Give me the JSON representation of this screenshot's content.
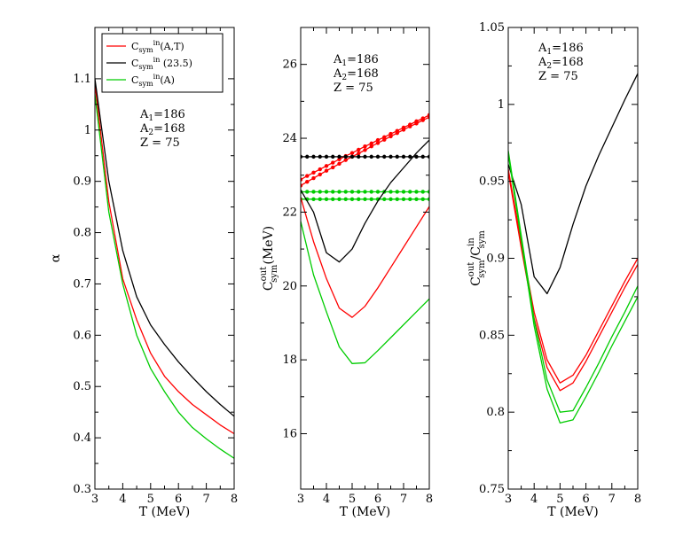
{
  "chart_data": [
    {
      "type": "line",
      "panel": "left",
      "title": "",
      "xlabel": "T (MeV)",
      "ylabel": "α",
      "xlim": [
        3,
        8
      ],
      "ylim": [
        0.3,
        1.2
      ],
      "xticks": [
        3,
        4,
        5,
        6,
        7,
        8
      ],
      "yticks": [
        0.3,
        0.4,
        0.5,
        0.6,
        0.7,
        0.8,
        0.9,
        1.0,
        1.1
      ],
      "ytick_labels": [
        "0.3",
        "0.4",
        "0.5",
        "0.6",
        "0.7",
        "0.8",
        "0.9",
        "1",
        "1.1"
      ],
      "legend": {
        "placement": "top-left",
        "entries": [
          {
            "base": "C",
            "sub": "sym",
            "sup": "in",
            "tail": "(A,T)",
            "color": "#ff0000"
          },
          {
            "base": "C",
            "sub": "sym",
            "sup": "in",
            "tail": " (23.5)",
            "color": "#000000"
          },
          {
            "base": "C",
            "sub": "sym",
            "sup": "in",
            "tail": "(A)",
            "color": "#00cc00"
          }
        ]
      },
      "annotation": [
        {
          "base": "A",
          "sub": "1",
          "value": "=186"
        },
        {
          "base": "A",
          "sub": "2",
          "value": "=168"
        },
        {
          "base": "Z",
          "sub": "",
          "value": " = 75"
        }
      ],
      "series": [
        {
          "name": "C_sym^in(A,T)",
          "color": "#ff0000",
          "markers": false,
          "x": [
            3,
            3.5,
            4,
            4.5,
            5,
            5.5,
            6,
            6.5,
            7,
            7.5,
            8
          ],
          "y": [
            1.09,
            0.86,
            0.71,
            0.63,
            0.565,
            0.52,
            0.49,
            0.465,
            0.445,
            0.425,
            0.408
          ]
        },
        {
          "name": "C_sym^in(23.5)",
          "color": "#000000",
          "markers": false,
          "x": [
            3,
            3.5,
            4,
            4.5,
            5,
            5.5,
            6,
            6.5,
            7,
            7.5,
            8
          ],
          "y": [
            1.1,
            0.9,
            0.765,
            0.675,
            0.62,
            0.582,
            0.548,
            0.518,
            0.49,
            0.465,
            0.442
          ]
        },
        {
          "name": "C_sym^in(A)",
          "color": "#00cc00",
          "markers": false,
          "x": [
            3,
            3.5,
            4,
            4.5,
            5,
            5.5,
            6,
            6.5,
            7,
            7.5,
            8
          ],
          "y": [
            1.07,
            0.84,
            0.7,
            0.6,
            0.535,
            0.49,
            0.45,
            0.42,
            0.398,
            0.378,
            0.36
          ]
        }
      ]
    },
    {
      "type": "line",
      "panel": "middle",
      "title": "",
      "xlabel": "T (MeV)",
      "ylabel": "C_sym^out (MeV)",
      "ylabel_parts": {
        "base": "C",
        "sub": "sym",
        "sup": "out",
        "tail": "(MeV)"
      },
      "xlim": [
        3,
        8
      ],
      "ylim": [
        14.5,
        27
      ],
      "xticks": [
        3,
        4,
        5,
        6,
        7,
        8
      ],
      "yticks": [
        16,
        18,
        20,
        22,
        24,
        26
      ],
      "ytick_labels": [
        "16",
        "18",
        "20",
        "22",
        "24",
        "26"
      ],
      "annotation": [
        {
          "base": "A",
          "sub": "1",
          "value": "=186"
        },
        {
          "base": "A",
          "sub": "2",
          "value": "=168"
        },
        {
          "base": "Z",
          "sub": "",
          "value": " = 75"
        }
      ],
      "series": [
        {
          "name": "red upper (dots)",
          "color": "#ff0000",
          "markers": true,
          "x": [
            3,
            3.25,
            3.5,
            3.75,
            4,
            4.25,
            4.5,
            4.75,
            5,
            5.25,
            5.5,
            5.75,
            6,
            6.25,
            6.5,
            6.75,
            7,
            7.25,
            7.5,
            7.75,
            8
          ],
          "y": [
            22.88,
            22.98,
            23.07,
            23.16,
            23.25,
            23.34,
            23.43,
            23.52,
            23.6,
            23.69,
            23.78,
            23.86,
            23.95,
            24.03,
            24.12,
            24.2,
            24.29,
            24.37,
            24.46,
            24.54,
            24.63
          ]
        },
        {
          "name": "red lower (dots)",
          "color": "#ff0000",
          "markers": true,
          "x": [
            3,
            3.25,
            3.5,
            3.75,
            4,
            4.25,
            4.5,
            4.75,
            5,
            5.25,
            5.5,
            5.75,
            6,
            6.25,
            6.5,
            6.75,
            7,
            7.25,
            7.5,
            7.75,
            8
          ],
          "y": [
            22.72,
            22.82,
            22.92,
            23.02,
            23.12,
            23.21,
            23.31,
            23.41,
            23.5,
            23.59,
            23.68,
            23.78,
            23.87,
            23.96,
            24.05,
            24.14,
            24.23,
            24.32,
            24.4,
            24.49,
            24.57
          ]
        },
        {
          "name": "black flat (dots)",
          "color": "#000000",
          "markers": true,
          "x": [
            3,
            3.25,
            3.5,
            3.75,
            4,
            4.25,
            4.5,
            4.75,
            5,
            5.25,
            5.5,
            5.75,
            6,
            6.25,
            6.5,
            6.75,
            7,
            7.25,
            7.5,
            7.75,
            8
          ],
          "y": [
            23.5,
            23.5,
            23.5,
            23.5,
            23.5,
            23.5,
            23.5,
            23.5,
            23.5,
            23.5,
            23.5,
            23.5,
            23.5,
            23.5,
            23.5,
            23.5,
            23.5,
            23.5,
            23.5,
            23.5,
            23.5
          ]
        },
        {
          "name": "green flat upper (dots)",
          "color": "#00cc00",
          "markers": true,
          "x": [
            3,
            3.25,
            3.5,
            3.75,
            4,
            4.25,
            4.5,
            4.75,
            5,
            5.25,
            5.5,
            5.75,
            6,
            6.25,
            6.5,
            6.75,
            7,
            7.25,
            7.5,
            7.75,
            8
          ],
          "y": [
            22.55,
            22.55,
            22.55,
            22.55,
            22.55,
            22.55,
            22.55,
            22.55,
            22.55,
            22.55,
            22.55,
            22.55,
            22.55,
            22.55,
            22.55,
            22.55,
            22.55,
            22.55,
            22.55,
            22.55,
            22.55
          ]
        },
        {
          "name": "green flat lower (dots)",
          "color": "#00cc00",
          "markers": true,
          "x": [
            3,
            3.25,
            3.5,
            3.75,
            4,
            4.25,
            4.5,
            4.75,
            5,
            5.25,
            5.5,
            5.75,
            6,
            6.25,
            6.5,
            6.75,
            7,
            7.25,
            7.5,
            7.75,
            8
          ],
          "y": [
            22.35,
            22.35,
            22.35,
            22.35,
            22.35,
            22.35,
            22.35,
            22.35,
            22.35,
            22.35,
            22.35,
            22.35,
            22.35,
            22.35,
            22.35,
            22.35,
            22.35,
            22.35,
            22.35,
            22.35,
            22.35
          ]
        },
        {
          "name": "black curve",
          "color": "#000000",
          "markers": false,
          "x": [
            3,
            3.5,
            4,
            4.5,
            5,
            5.5,
            6,
            6.5,
            7,
            7.5,
            8
          ],
          "y": [
            22.6,
            22.0,
            20.9,
            20.65,
            21.0,
            21.7,
            22.3,
            22.8,
            23.2,
            23.6,
            23.95
          ]
        },
        {
          "name": "red curve",
          "color": "#ff0000",
          "markers": false,
          "x": [
            3,
            3.5,
            4,
            4.5,
            5,
            5.5,
            6,
            6.5,
            7,
            7.5,
            8
          ],
          "y": [
            22.4,
            21.2,
            20.2,
            19.4,
            19.15,
            19.45,
            19.95,
            20.5,
            21.05,
            21.6,
            22.15
          ]
        },
        {
          "name": "green curve",
          "color": "#00cc00",
          "markers": false,
          "x": [
            3,
            3.5,
            4,
            4.5,
            5,
            5.5,
            6,
            6.5,
            7,
            7.5,
            8
          ],
          "y": [
            21.75,
            20.3,
            19.3,
            18.35,
            17.9,
            17.92,
            18.25,
            18.6,
            18.95,
            19.3,
            19.65
          ]
        }
      ]
    },
    {
      "type": "line",
      "panel": "right",
      "title": "",
      "xlabel": "T (MeV)",
      "ylabel": "C_sym^out / C_sym^in",
      "ylabel_parts": {
        "num_base": "C",
        "num_sub": "sym",
        "num_sup": "out",
        "slash": "/",
        "den_base": "C",
        "den_sub": "sym",
        "den_sup": "in"
      },
      "xlim": [
        3,
        8
      ],
      "ylim": [
        0.75,
        1.05
      ],
      "xticks": [
        3,
        4,
        5,
        6,
        7,
        8
      ],
      "yticks": [
        0.75,
        0.8,
        0.85,
        0.9,
        0.95,
        1.0,
        1.05
      ],
      "ytick_labels": [
        "0.75",
        "0.8",
        "0.85",
        "0.9",
        "0.95",
        "1",
        "1.05"
      ],
      "annotation": [
        {
          "base": "A",
          "sub": "1",
          "value": "=186"
        },
        {
          "base": "A",
          "sub": "2",
          "value": "=168"
        },
        {
          "base": "Z",
          "sub": "",
          "value": " = 75"
        }
      ],
      "series": [
        {
          "name": "black",
          "color": "#000000",
          "markers": false,
          "x": [
            3,
            3.5,
            4,
            4.5,
            5,
            5.5,
            6,
            6.5,
            7,
            7.5,
            8
          ],
          "y": [
            0.961,
            0.935,
            0.888,
            0.877,
            0.894,
            0.922,
            0.947,
            0.967,
            0.985,
            1.003,
            1.02
          ]
        },
        {
          "name": "red upper",
          "color": "#ff0000",
          "markers": false,
          "x": [
            3,
            3.5,
            4,
            4.5,
            5,
            5.5,
            6,
            6.5,
            7,
            7.5,
            8
          ],
          "y": [
            0.958,
            0.91,
            0.865,
            0.834,
            0.819,
            0.824,
            0.837,
            0.853,
            0.869,
            0.885,
            0.9
          ]
        },
        {
          "name": "red lower",
          "color": "#ff0000",
          "markers": false,
          "x": [
            3,
            3.5,
            4,
            4.5,
            5,
            5.5,
            6,
            6.5,
            7,
            7.5,
            8
          ],
          "y": [
            0.956,
            0.907,
            0.861,
            0.829,
            0.814,
            0.819,
            0.833,
            0.849,
            0.865,
            0.881,
            0.896
          ]
        },
        {
          "name": "green upper",
          "color": "#00cc00",
          "markers": false,
          "x": [
            3,
            3.5,
            4,
            4.5,
            5,
            5.5,
            6,
            6.5,
            7,
            7.5,
            8
          ],
          "y": [
            0.97,
            0.915,
            0.86,
            0.821,
            0.8,
            0.801,
            0.816,
            0.832,
            0.849,
            0.865,
            0.882
          ]
        },
        {
          "name": "green lower",
          "color": "#00cc00",
          "markers": false,
          "x": [
            3,
            3.5,
            4,
            4.5,
            5,
            5.5,
            6,
            6.5,
            7,
            7.5,
            8
          ],
          "y": [
            0.968,
            0.912,
            0.856,
            0.815,
            0.793,
            0.795,
            0.81,
            0.826,
            0.843,
            0.859,
            0.875
          ]
        }
      ]
    }
  ]
}
